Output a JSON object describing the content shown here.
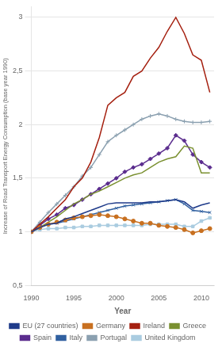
{
  "chart_data": {
    "type": "line",
    "x": [
      1990,
      1991,
      1992,
      1993,
      1994,
      1995,
      1996,
      1997,
      1998,
      1999,
      2000,
      2001,
      2002,
      2003,
      2004,
      2005,
      2006,
      2007,
      2008,
      2009,
      2010,
      2011
    ],
    "series": [
      {
        "name": "EU (27 countries)",
        "color": "#1F3B8A",
        "values": [
          1.0,
          1.04,
          1.07,
          1.08,
          1.12,
          1.14,
          1.17,
          1.2,
          1.23,
          1.26,
          1.27,
          1.27,
          1.27,
          1.27,
          1.28,
          1.28,
          1.29,
          1.3,
          1.28,
          1.22,
          1.25,
          1.27
        ]
      },
      {
        "name": "Germany",
        "color": "#C87020",
        "marker": "circle",
        "values": [
          1.0,
          1.04,
          1.07,
          1.09,
          1.11,
          1.13,
          1.14,
          1.15,
          1.16,
          1.15,
          1.14,
          1.12,
          1.1,
          1.08,
          1.08,
          1.06,
          1.05,
          1.04,
          1.02,
          0.99,
          1.01,
          1.03
        ]
      },
      {
        "name": "Ireland",
        "color": "#A52010",
        "values": [
          1.0,
          1.07,
          1.14,
          1.22,
          1.3,
          1.42,
          1.5,
          1.65,
          1.88,
          2.18,
          2.25,
          2.3,
          2.45,
          2.5,
          2.62,
          2.72,
          2.87,
          3.0,
          2.85,
          2.65,
          2.6,
          2.3
        ]
      },
      {
        "name": "Greece",
        "color": "#7A9030",
        "values": [
          1.0,
          1.04,
          1.09,
          1.14,
          1.2,
          1.26,
          1.3,
          1.35,
          1.38,
          1.42,
          1.46,
          1.5,
          1.53,
          1.55,
          1.6,
          1.65,
          1.68,
          1.7,
          1.8,
          1.78,
          1.55,
          1.55
        ]
      },
      {
        "name": "Spain",
        "color": "#5B2D8E",
        "marker": "diamond",
        "values": [
          1.0,
          1.06,
          1.12,
          1.16,
          1.22,
          1.25,
          1.3,
          1.35,
          1.4,
          1.45,
          1.5,
          1.56,
          1.6,
          1.63,
          1.68,
          1.73,
          1.78,
          1.9,
          1.85,
          1.72,
          1.65,
          1.6
        ]
      },
      {
        "name": "Italy",
        "color": "#3060A0",
        "marker": "x",
        "values": [
          1.0,
          1.04,
          1.07,
          1.08,
          1.1,
          1.12,
          1.14,
          1.16,
          1.18,
          1.2,
          1.22,
          1.24,
          1.25,
          1.26,
          1.27,
          1.28,
          1.29,
          1.3,
          1.26,
          1.2,
          1.19,
          1.18
        ]
      },
      {
        "name": "Portugal",
        "color": "#8BA0B0",
        "marker": "plus",
        "values": [
          1.0,
          1.09,
          1.18,
          1.26,
          1.34,
          1.42,
          1.52,
          1.6,
          1.72,
          1.84,
          1.9,
          1.95,
          2.0,
          2.05,
          2.08,
          2.1,
          2.08,
          2.05,
          2.03,
          2.02,
          2.02,
          2.03
        ]
      },
      {
        "name": "United Kingdom",
        "color": "#AACCE0",
        "marker": "square",
        "values": [
          1.0,
          1.02,
          1.03,
          1.03,
          1.04,
          1.04,
          1.05,
          1.05,
          1.06,
          1.06,
          1.06,
          1.06,
          1.06,
          1.06,
          1.07,
          1.07,
          1.07,
          1.07,
          1.05,
          1.05,
          1.1,
          1.13
        ]
      }
    ],
    "xlabel": "Year",
    "ylabel": "Increase of Road Transport Energy Consumption (base year 1990)",
    "xlim": [
      1990,
      2011.5
    ],
    "ylim": [
      0.5,
      3.1
    ],
    "xticks": [
      1990,
      1995,
      2000,
      2005,
      2010
    ],
    "yticks": [
      {
        "value": 0.5,
        "label": "0,5"
      },
      1,
      {
        "value": 1.5,
        "label": "1,5"
      },
      2,
      {
        "value": 2.5,
        "label": "2,5"
      },
      3
    ],
    "grid": "y",
    "legend": "bottom"
  }
}
